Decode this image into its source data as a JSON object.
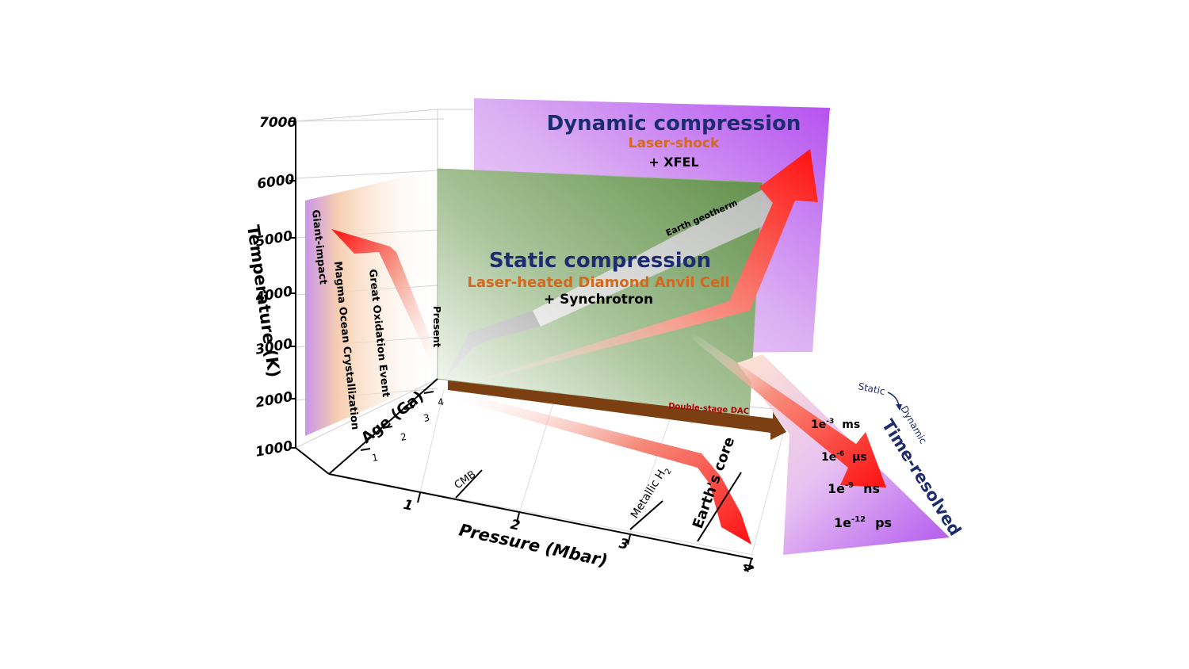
{
  "axes": {
    "temperature_title": "Temperature (K)",
    "temperature_ticks": [
      "7000",
      "6000",
      "5000",
      "4000",
      "3000",
      "2000",
      "1000"
    ],
    "pressure_title": "Pressure (Mbar)",
    "pressure_ticks": [
      "1",
      "2",
      "3",
      "4"
    ],
    "age_title": "Age (Ga)",
    "age_ticks": [
      "1",
      "2",
      "3",
      "4"
    ]
  },
  "dynamic": {
    "title": "Dynamic compression",
    "sub1": "Laser-shock",
    "sub2": "+ XFEL"
  },
  "static": {
    "title": "Static compression",
    "sub1": "Laser-heated Diamond Anvil Cell",
    "sub2": "+ Synchrotron",
    "dac_label": "Double-stage  DAC"
  },
  "geotherm_label": "Earth geotherm",
  "age_events": {
    "present": "Present",
    "great_oxidation": "Great Oxidation Event",
    "magma_ocean": "Magma Ocean Crystallization",
    "giant_impact": "Giant-impact"
  },
  "pressure_markers": {
    "cmb": "CMB",
    "metallic_h2_base": "Metallic H",
    "metallic_h2_sub": "2",
    "earths_core": "Earth's core"
  },
  "time_resolved": {
    "title": "Time-resolved",
    "static_label": "Static",
    "dynamic_label": "Dynamic",
    "rows": [
      {
        "base": "1e",
        "exp": "-3",
        "unit": "ms"
      },
      {
        "base": "1e",
        "exp": "-6",
        "unit": "μs"
      },
      {
        "base": "1e",
        "exp": "-9",
        "unit": "ns"
      },
      {
        "base": "1e",
        "exp": "-12",
        "unit": "ps"
      }
    ]
  }
}
